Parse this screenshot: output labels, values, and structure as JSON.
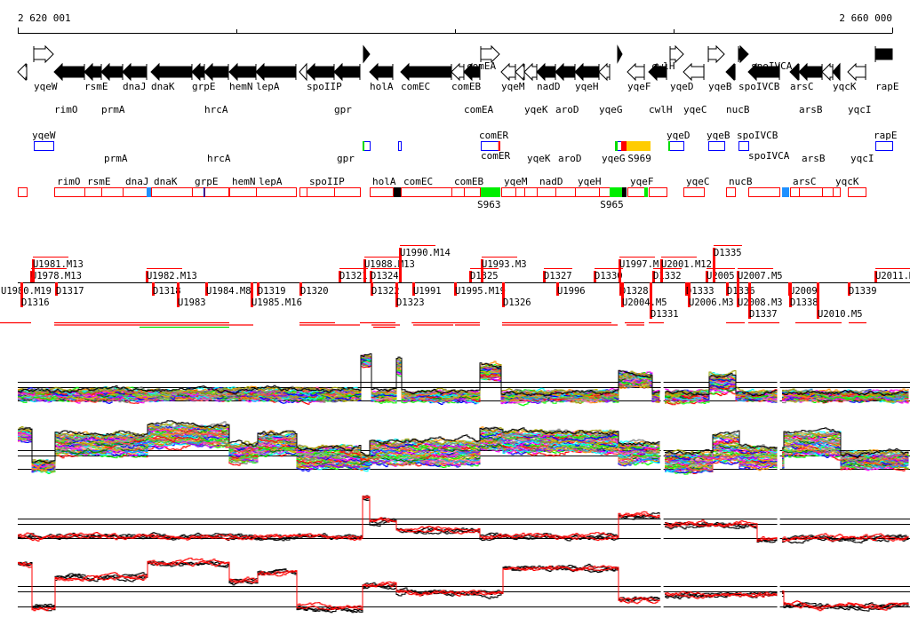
{
  "ruler": {
    "start_label": "2 620 001",
    "end_label": "2 660 000",
    "start": 2620001,
    "end": 2660000
  },
  "genes": [
    {
      "name": "",
      "start": 2620001,
      "end": 2620408,
      "strand": "-",
      "style": "outline"
    },
    {
      "name": "yqeW",
      "start": 2620733,
      "end": 2621627,
      "strand": "+",
      "style": "outline"
    },
    {
      "name": "rimO",
      "start": 2621668,
      "end": 2623050,
      "strand": "-",
      "style": "filled"
    },
    {
      "name": "rsmE",
      "start": 2623050,
      "end": 2623822,
      "strand": "-",
      "style": "filled"
    },
    {
      "name": "prmA",
      "start": 2623822,
      "end": 2624798,
      "strand": "-",
      "style": "filled"
    },
    {
      "name": "dnaJ",
      "start": 2624798,
      "end": 2625895,
      "strand": "-",
      "style": "filled"
    },
    {
      "name": "dnaK",
      "start": 2626098,
      "end": 2627967,
      "strand": "-",
      "style": "filled"
    },
    {
      "name": "grpE",
      "start": 2627967,
      "end": 2628537,
      "strand": "-",
      "style": "filled"
    },
    {
      "name": "hrcA",
      "start": 2628537,
      "end": 2629634,
      "strand": "-",
      "style": "filled"
    },
    {
      "name": "hemN",
      "start": 2629675,
      "end": 2630895,
      "strand": "-",
      "style": "filled"
    },
    {
      "name": "lepA",
      "start": 2630895,
      "end": 2632723,
      "strand": "-",
      "style": "filled"
    },
    {
      "name": "",
      "start": 2632886,
      "end": 2633212,
      "strand": "-",
      "style": "outline"
    },
    {
      "name": "spoIIP",
      "start": 2633212,
      "end": 2634471,
      "strand": "-",
      "style": "filled"
    },
    {
      "name": "gpr",
      "start": 2634471,
      "end": 2635650,
      "strand": "-",
      "style": "filled"
    },
    {
      "name": "",
      "start": 2635813,
      "end": 2636098,
      "strand": "+",
      "style": "filled"
    },
    {
      "name": "holA",
      "start": 2636098,
      "end": 2637154,
      "strand": "-",
      "style": "filled"
    },
    {
      "name": "comEC",
      "start": 2637520,
      "end": 2639837,
      "strand": "-",
      "style": "filled"
    },
    {
      "name": "comEB",
      "start": 2639837,
      "end": 2640406,
      "strand": "-",
      "style": "outline"
    },
    {
      "name": "comEA",
      "start": 2640406,
      "end": 2641138,
      "strand": "-",
      "style": "filled"
    },
    {
      "name": "comER",
      "start": 2641179,
      "end": 2642032,
      "strand": "+",
      "style": "outline"
    },
    {
      "name": "yqeM",
      "start": 2642114,
      "end": 2642764,
      "strand": "-",
      "style": "outline"
    },
    {
      "name": "",
      "start": 2642764,
      "end": 2643171,
      "strand": "-",
      "style": "outline"
    },
    {
      "name": "yqeK",
      "start": 2643171,
      "end": 2643740,
      "strand": "-",
      "style": "outline"
    },
    {
      "name": "nadD",
      "start": 2643740,
      "end": 2644594,
      "strand": "-",
      "style": "filled"
    },
    {
      "name": "aroD",
      "start": 2644594,
      "end": 2645488,
      "strand": "-",
      "style": "filled"
    },
    {
      "name": "yqeH",
      "start": 2645488,
      "end": 2646586,
      "strand": "-",
      "style": "filled"
    },
    {
      "name": "yqeG",
      "start": 2646586,
      "end": 2647073,
      "strand": "-",
      "style": "outline"
    },
    {
      "name": "",
      "start": 2647439,
      "end": 2647643,
      "strand": "+",
      "style": "filled"
    },
    {
      "name": "yqeF",
      "start": 2647887,
      "end": 2648659,
      "strand": "-",
      "style": "outline"
    },
    {
      "name": "cwlH",
      "start": 2648863,
      "end": 2649676,
      "strand": "-",
      "style": "filled"
    },
    {
      "name": "yqeD",
      "start": 2649839,
      "end": 2650449,
      "strand": "+",
      "style": "outline"
    },
    {
      "name": "yqeC",
      "start": 2650449,
      "end": 2651384,
      "strand": "-",
      "style": "outline"
    },
    {
      "name": "yqeB",
      "start": 2651587,
      "end": 2652319,
      "strand": "+",
      "style": "outline"
    },
    {
      "name": "nucB",
      "start": 2652400,
      "end": 2652807,
      "strand": "-",
      "style": "filled"
    },
    {
      "name": "spoIVCB",
      "start": 2652969,
      "end": 2653416,
      "strand": "+",
      "style": "filled"
    },
    {
      "name": "spoIVCA",
      "start": 2653416,
      "end": 2654839,
      "strand": "-",
      "style": "filled"
    },
    {
      "name": "arsC",
      "start": 2655327,
      "end": 2655733,
      "strand": "-",
      "style": "filled"
    },
    {
      "name": "arsB",
      "start": 2655733,
      "end": 2656790,
      "strand": "-",
      "style": "filled"
    },
    {
      "name": "",
      "start": 2656790,
      "end": 2657278,
      "strand": "-",
      "style": "outline"
    },
    {
      "name": "yqcK",
      "start": 2657278,
      "end": 2657603,
      "strand": "-",
      "style": "filled"
    },
    {
      "name": "yqcI",
      "start": 2657969,
      "end": 2658782,
      "strand": "-",
      "style": "outline"
    },
    {
      "name": "rapE",
      "start": 2659229,
      "end": 2660000,
      "strand": "+",
      "style": "box"
    }
  ],
  "forward_features": {
    "boxes": [
      {
        "label": "yqeW",
        "start": 2620733,
        "end": 2621627
      },
      {
        "label": "",
        "start": 2635813,
        "end": 2636098
      },
      {
        "label": "",
        "start": 2637398,
        "end": 2637520
      },
      {
        "label": "comER",
        "start": 2641179,
        "end": 2642032
      },
      {
        "label": "",
        "start": 2647318,
        "end": 2647602
      },
      {
        "label": "yqeD",
        "start": 2649757,
        "end": 2650449
      },
      {
        "label": "yqeB",
        "start": 2651587,
        "end": 2652319
      },
      {
        "label": "spoIVCB",
        "start": 2652969,
        "end": 2653416
      },
      {
        "label": "rapE",
        "start": 2659229,
        "end": 2660000
      }
    ],
    "marks": [
      {
        "start": 2635772,
        "end": 2635853,
        "color": "#00dd00"
      },
      {
        "start": 2641980,
        "end": 2642073,
        "color": "#ff0000"
      },
      {
        "start": 2647318,
        "end": 2647440,
        "color": "#00dd00"
      },
      {
        "start": 2647602,
        "end": 2647846,
        "color": "#ff0000"
      },
      {
        "start": 2647846,
        "end": 2648944,
        "color": "#ffcc00"
      },
      {
        "start": 2649757,
        "end": 2649800,
        "color": "#00dd00"
      }
    ],
    "site_labels": [
      {
        "label": "S969",
        "pos": 2647900
      }
    ],
    "box_color": "#0000ff"
  },
  "reverse_features": {
    "box_color": "#ff0000",
    "marks": [
      {
        "start": 2625895,
        "end": 2626098,
        "color": "#1e90ff"
      },
      {
        "start": 2628500,
        "end": 2628560,
        "color": "#0000aa"
      },
      {
        "start": 2637195,
        "end": 2637520,
        "color": "#000000"
      },
      {
        "start": 2641179,
        "end": 2642073,
        "color": "#00ee00"
      },
      {
        "start": 2647073,
        "end": 2647643,
        "color": "#00ee00"
      },
      {
        "start": 2647643,
        "end": 2647846,
        "color": "#000000"
      },
      {
        "start": 2648659,
        "end": 2648822,
        "color": "#00ee00"
      },
      {
        "start": 2654961,
        "end": 2655286,
        "color": "#1e90ff"
      }
    ],
    "site_labels": [
      {
        "label": "S963",
        "pos": 2641179
      },
      {
        "label": "S965",
        "pos": 2646800
      }
    ]
  },
  "transcription_units": {
    "above": [
      {
        "label": "U1978.M13",
        "pos": 2620611
      },
      {
        "label": "U1981.M13",
        "pos": 2620692
      },
      {
        "label": "U1982.M13",
        "pos": 2625895
      },
      {
        "label": "D1321",
        "pos": 2634716
      },
      {
        "label": "U1988.M13",
        "pos": 2635854
      },
      {
        "label": "D1324",
        "pos": 2636139
      },
      {
        "label": "U1990.M14",
        "pos": 2637480
      },
      {
        "label": "D1325",
        "pos": 2640692
      },
      {
        "label": "U1993.M3",
        "pos": 2641220
      },
      {
        "label": "D1327",
        "pos": 2644066
      },
      {
        "label": "D1330",
        "pos": 2646383
      },
      {
        "label": "U1997.M",
        "pos": 2647521
      },
      {
        "label": "D1332",
        "pos": 2649065
      },
      {
        "label": "U2001.M12",
        "pos": 2649432
      },
      {
        "label": "U2005",
        "pos": 2651505
      },
      {
        "label": "D1335",
        "pos": 2651830
      },
      {
        "label": "U2007.M5",
        "pos": 2652929
      },
      {
        "label": "U2011.M",
        "pos": 2659229
      }
    ],
    "below": [
      {
        "label": "U1980.M19",
        "pos": 2618985
      },
      {
        "label": "D1316",
        "pos": 2620164
      },
      {
        "label": "D1317",
        "pos": 2621749
      },
      {
        "label": "D1318",
        "pos": 2626180
      },
      {
        "label": "U1983",
        "pos": 2627318
      },
      {
        "label": "U1984.M8",
        "pos": 2628619
      },
      {
        "label": "U1985.M16",
        "pos": 2630692
      },
      {
        "label": "D1319",
        "pos": 2630976
      },
      {
        "label": "D1320",
        "pos": 2632928
      },
      {
        "label": "D1322",
        "pos": 2636180
      },
      {
        "label": "D1323",
        "pos": 2637318
      },
      {
        "label": "U1991",
        "pos": 2638090
      },
      {
        "label": "U1995.M19",
        "pos": 2640001
      },
      {
        "label": "D1326",
        "pos": 2642196
      },
      {
        "label": "U1996",
        "pos": 2644676
      },
      {
        "label": "D1328",
        "pos": 2647562
      },
      {
        "label": "U2004.M5",
        "pos": 2647643
      },
      {
        "label": "D1331",
        "pos": 2648944
      },
      {
        "label": "D1333",
        "pos": 2650570
      },
      {
        "label": "U2006.M3",
        "pos": 2650692
      },
      {
        "label": "D1336",
        "pos": 2652440
      },
      {
        "label": "U2008.M3",
        "pos": 2652928
      },
      {
        "label": "D1337",
        "pos": 2653456
      },
      {
        "label": "U2009",
        "pos": 2655286
      },
      {
        "label": "D1338",
        "pos": 2655326
      },
      {
        "label": "U2010.M5",
        "pos": 2656586
      },
      {
        "label": "D1339",
        "pos": 2658009
      }
    ],
    "spans": [
      {
        "start": 2619188,
        "end": 2620611,
        "color": "#ff0000"
      },
      {
        "start": 2621668,
        "end": 2629675,
        "color": "#ff0000"
      },
      {
        "start": 2621668,
        "end": 2630773,
        "color": "#ff0000"
      },
      {
        "start": 2625570,
        "end": 2629675,
        "color": "#00dd00"
      },
      {
        "start": 2632887,
        "end": 2634513,
        "color": "#ff0000"
      },
      {
        "start": 2632887,
        "end": 2635650,
        "color": "#ff0000"
      },
      {
        "start": 2635650,
        "end": 2637277,
        "color": "#ff0000"
      },
      {
        "start": 2636180,
        "end": 2637480,
        "color": "#ff0000"
      },
      {
        "start": 2636261,
        "end": 2637277,
        "color": "#ff0000"
      },
      {
        "start": 2638018,
        "end": 2641138,
        "color": "#ff0000"
      },
      {
        "start": 2638090,
        "end": 2639920,
        "color": "#ff0000"
      },
      {
        "start": 2640001,
        "end": 2641138,
        "color": "#ff0000"
      },
      {
        "start": 2642155,
        "end": 2647155,
        "color": "#ff0000"
      },
      {
        "start": 2642155,
        "end": 2647440,
        "color": "#ff0000"
      },
      {
        "start": 2647765,
        "end": 2648659,
        "color": "#ff0000"
      },
      {
        "start": 2647846,
        "end": 2648659,
        "color": "#ff0000"
      },
      {
        "start": 2648863,
        "end": 2649554,
        "color": "#ff0000"
      },
      {
        "start": 2652400,
        "end": 2653253,
        "color": "#ff0000"
      },
      {
        "start": 2653416,
        "end": 2654839,
        "color": "#ff0000"
      },
      {
        "start": 2655570,
        "end": 2657684,
        "color": "#ff0000"
      },
      {
        "start": 2658009,
        "end": 2658822,
        "color": "#ff0000"
      }
    ]
  },
  "chart_data": [
    {
      "type": "line",
      "series_count": 40,
      "gaps": [
        2649476,
        2654800
      ],
      "segments": [
        [
          2619200,
          2635650,
          0.32,
          0.15
        ],
        [
          2635650,
          2636100,
          0.85,
          0.15
        ],
        [
          2636100,
          2637300,
          0.3,
          0.15
        ],
        [
          2637300,
          2637500,
          0.75,
          0.2
        ],
        [
          2637500,
          2641138,
          0.3,
          0.12
        ],
        [
          2641138,
          2642073,
          0.68,
          0.2
        ],
        [
          2642073,
          2647400,
          0.3,
          0.12
        ],
        [
          2647400,
          2649000,
          0.55,
          0.2
        ],
        [
          2649000,
          2651600,
          0.3,
          0.12
        ],
        [
          2651600,
          2652800,
          0.5,
          0.25
        ],
        [
          2652800,
          2660000,
          0.3,
          0.12
        ]
      ]
    },
    {
      "type": "line",
      "series_count": 40,
      "gaps": [
        2649476,
        2654800
      ],
      "segments": [
        [
          2619200,
          2620611,
          0.73,
          0.15
        ],
        [
          2620611,
          2621627,
          0.27,
          0.1
        ],
        [
          2621627,
          2625895,
          0.6,
          0.3
        ],
        [
          2625895,
          2629675,
          0.73,
          0.3
        ],
        [
          2629675,
          2630976,
          0.47,
          0.25
        ],
        [
          2630976,
          2632723,
          0.6,
          0.3
        ],
        [
          2632723,
          2635650,
          0.4,
          0.3
        ],
        [
          2635650,
          2636057,
          0.33,
          0.2
        ],
        [
          2636057,
          2641138,
          0.47,
          0.35
        ],
        [
          2641138,
          2642155,
          0.67,
          0.3
        ],
        [
          2642155,
          2647440,
          0.63,
          0.3
        ],
        [
          2647440,
          2649473,
          0.47,
          0.3
        ],
        [
          2649473,
          2651709,
          0.33,
          0.3
        ],
        [
          2651709,
          2652928,
          0.53,
          0.4
        ],
        [
          2652928,
          2654961,
          0.4,
          0.3
        ],
        [
          2654961,
          2657603,
          0.6,
          0.35
        ],
        [
          2657603,
          2660000,
          0.36,
          0.2
        ]
      ]
    },
    {
      "type": "line",
      "series_colors": [
        "#000000",
        "#000000",
        "#000000",
        "#ff0000",
        "#ff0000"
      ],
      "gaps": [
        2649476,
        2654800
      ],
      "segments": [
        [
          2619200,
          2635772,
          0.2,
          0.06
        ],
        [
          2635772,
          2636057,
          0.85,
          0.08
        ],
        [
          2636057,
          2637277,
          0.45,
          0.08
        ],
        [
          2637277,
          2641138,
          0.3,
          0.08
        ],
        [
          2641138,
          2647440,
          0.2,
          0.06
        ],
        [
          2647440,
          2649473,
          0.55,
          0.1
        ],
        [
          2649473,
          2653741,
          0.4,
          0.12
        ],
        [
          2653741,
          2660000,
          0.17,
          0.06
        ]
      ]
    },
    {
      "type": "line",
      "series_colors": [
        "#000000",
        "#000000",
        "#000000",
        "#ff0000",
        "#ff0000"
      ],
      "gaps": [
        2649476,
        2654800
      ],
      "segments": [
        [
          2619200,
          2620611,
          0.79,
          0.06
        ],
        [
          2620611,
          2621627,
          0.1,
          0.05
        ],
        [
          2621627,
          2625895,
          0.57,
          0.06
        ],
        [
          2625895,
          2629675,
          0.79,
          0.06
        ],
        [
          2629675,
          2630976,
          0.5,
          0.06
        ],
        [
          2630976,
          2632723,
          0.64,
          0.06
        ],
        [
          2632723,
          2635772,
          0.07,
          0.05
        ],
        [
          2635772,
          2637277,
          0.43,
          0.08
        ],
        [
          2637277,
          2642155,
          0.31,
          0.08
        ],
        [
          2642155,
          2647440,
          0.71,
          0.06
        ],
        [
          2647440,
          2649473,
          0.21,
          0.06
        ],
        [
          2649473,
          2654961,
          0.29,
          0.08
        ],
        [
          2654961,
          2660000,
          0.11,
          0.05
        ]
      ]
    }
  ],
  "trace_palette": [
    "#ff0000",
    "#00ff00",
    "#0000ff",
    "#ff00ff",
    "#00ffff",
    "#ff8c00",
    "#808080",
    "#a0a000",
    "#8000ff",
    "#00a0ff",
    "#ff69b4",
    "#008000",
    "#c8c800",
    "#ff4040",
    "#40e040",
    "#a0a0a0"
  ]
}
